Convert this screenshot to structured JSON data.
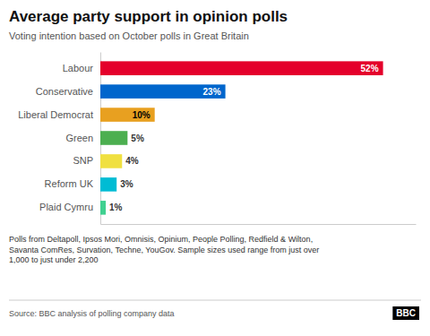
{
  "chart_data": {
    "type": "bar",
    "orientation": "horizontal",
    "title": "Average party support in opinion polls",
    "subtitle": "Voting intention based on October polls in Great Britain",
    "categories": [
      "Labour",
      "Conservative",
      "Liberal Democrat",
      "Green",
      "SNP",
      "Reform UK",
      "Plaid Cymru"
    ],
    "values": [
      52,
      23,
      10,
      5,
      4,
      3,
      1
    ],
    "value_labels": [
      "52%",
      "23%",
      "10%",
      "5%",
      "4%",
      "3%",
      "1%"
    ],
    "colors": [
      "#e4002b",
      "#0066cc",
      "#e8a020",
      "#4caf50",
      "#f0e040",
      "#00bcd4",
      "#40d090"
    ],
    "data_labels": true,
    "xlim": [
      0,
      58
    ],
    "tick_labels": "y",
    "grid": false,
    "footnote": "Polls from Deltapoll, Ipsos Mori, Omnisis, Opinium, People Polling, Redfield & Wilton,\nSavanta ComRes, Survation, Techne, YouGov. Sample sizes used range from just over\n1,000 to just under 2,200",
    "source": "Source: BBC analysis of polling company data",
    "logo": "BBC"
  }
}
